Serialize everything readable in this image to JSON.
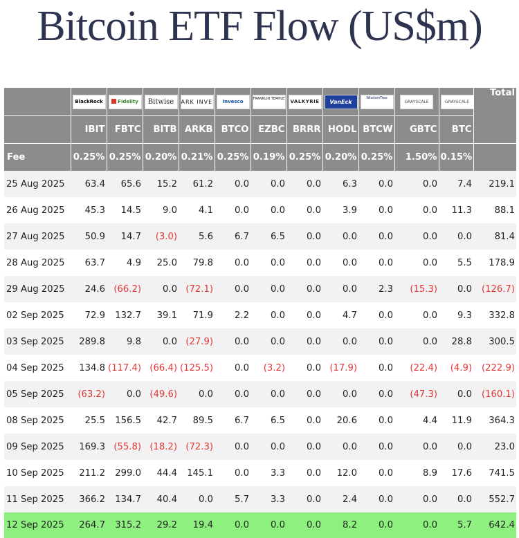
{
  "title": "Bitcoin ETF Flow (US$m)",
  "header": {
    "total_label": "Total",
    "fee_label": "Fee",
    "issuers": [
      "BlackRock",
      "Fidelity",
      "Bitwise",
      "ARK INVEST",
      "Invesco",
      "FRANKLIN TEMPLETON",
      "VALKYRIE",
      "VanEck",
      "WisdomTree",
      "GRAYSCALE",
      "GRAYSCALE"
    ],
    "tickers": [
      "IBIT",
      "FBTC",
      "BITB",
      "ARKB",
      "BTCO",
      "EZBC",
      "BRRR",
      "HODL",
      "BTCW",
      "GBTC",
      "BTC"
    ],
    "fees": [
      "0.25%",
      "0.25%",
      "0.20%",
      "0.21%",
      "0.25%",
      "0.19%",
      "0.25%",
      "0.20%",
      "0.25%",
      "1.50%",
      "0.15%"
    ]
  },
  "colors": {
    "header_bg": "#8c8c8c",
    "row_alt_bg": "#f2f2f2",
    "highlight_row_bg": "#8df07f",
    "negative_text": "#e53535",
    "title_text": "#2e3450"
  },
  "rows": [
    {
      "date": "25 Aug 2025",
      "values": [
        "63.4",
        "65.6",
        "15.2",
        "61.2",
        "0.0",
        "0.0",
        "0.0",
        "6.3",
        "0.0",
        "0.0",
        "7.4",
        "219.1"
      ]
    },
    {
      "date": "26 Aug 2025",
      "values": [
        "45.3",
        "14.5",
        "9.0",
        "4.1",
        "0.0",
        "0.0",
        "0.0",
        "3.9",
        "0.0",
        "0.0",
        "11.3",
        "88.1"
      ]
    },
    {
      "date": "27 Aug 2025",
      "values": [
        "50.9",
        "14.7",
        "(3.0)",
        "5.6",
        "6.7",
        "6.5",
        "0.0",
        "0.0",
        "0.0",
        "0.0",
        "0.0",
        "81.4"
      ]
    },
    {
      "date": "28 Aug 2025",
      "values": [
        "63.7",
        "4.9",
        "25.0",
        "79.8",
        "0.0",
        "0.0",
        "0.0",
        "0.0",
        "0.0",
        "0.0",
        "5.5",
        "178.9"
      ]
    },
    {
      "date": "29 Aug 2025",
      "values": [
        "24.6",
        "(66.2)",
        "0.0",
        "(72.1)",
        "0.0",
        "0.0",
        "0.0",
        "0.0",
        "2.3",
        "(15.3)",
        "0.0",
        "(126.7)"
      ]
    },
    {
      "date": "02 Sep 2025",
      "values": [
        "72.9",
        "132.7",
        "39.1",
        "71.9",
        "2.2",
        "0.0",
        "0.0",
        "4.7",
        "0.0",
        "0.0",
        "9.3",
        "332.8"
      ]
    },
    {
      "date": "03 Sep 2025",
      "values": [
        "289.8",
        "9.8",
        "0.0",
        "(27.9)",
        "0.0",
        "0.0",
        "0.0",
        "0.0",
        "0.0",
        "0.0",
        "28.8",
        "300.5"
      ]
    },
    {
      "date": "04 Sep 2025",
      "values": [
        "134.8",
        "(117.4)",
        "(66.4)",
        "(125.5)",
        "0.0",
        "(3.2)",
        "0.0",
        "(17.9)",
        "0.0",
        "(22.4)",
        "(4.9)",
        "(222.9)"
      ]
    },
    {
      "date": "05 Sep 2025",
      "values": [
        "(63.2)",
        "0.0",
        "(49.6)",
        "0.0",
        "0.0",
        "0.0",
        "0.0",
        "0.0",
        "0.0",
        "(47.3)",
        "0.0",
        "(160.1)"
      ]
    },
    {
      "date": "08 Sep 2025",
      "values": [
        "25.5",
        "156.5",
        "42.7",
        "89.5",
        "6.7",
        "6.5",
        "0.0",
        "20.6",
        "0.0",
        "4.4",
        "11.9",
        "364.3"
      ]
    },
    {
      "date": "09 Sep 2025",
      "values": [
        "169.3",
        "(55.8)",
        "(18.2)",
        "(72.3)",
        "0.0",
        "0.0",
        "0.0",
        "0.0",
        "0.0",
        "0.0",
        "0.0",
        "23.0"
      ]
    },
    {
      "date": "10 Sep 2025",
      "values": [
        "211.2",
        "299.0",
        "44.4",
        "145.1",
        "0.0",
        "3.3",
        "0.0",
        "12.0",
        "0.0",
        "8.9",
        "17.6",
        "741.5"
      ]
    },
    {
      "date": "11 Sep 2025",
      "values": [
        "366.2",
        "134.7",
        "40.4",
        "0.0",
        "5.7",
        "3.3",
        "0.0",
        "2.4",
        "0.0",
        "0.0",
        "0.0",
        "552.7"
      ]
    },
    {
      "date": "12 Sep 2025",
      "values": [
        "264.7",
        "315.2",
        "29.2",
        "19.4",
        "0.0",
        "0.0",
        "0.0",
        "8.2",
        "0.0",
        "0.0",
        "5.7",
        "642.4"
      ]
    }
  ]
}
